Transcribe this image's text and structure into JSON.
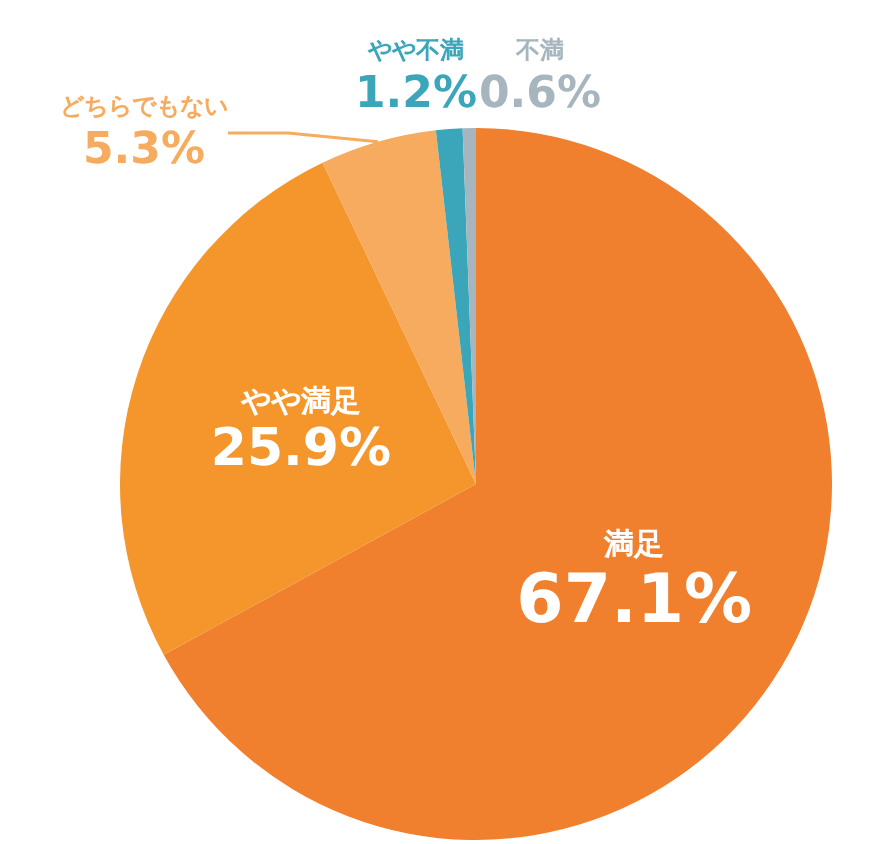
{
  "chart_data": {
    "type": "pie",
    "categories": [
      "満足",
      "やや満足",
      "どちらでもない",
      "やや不満",
      "不満"
    ],
    "values": [
      67.1,
      25.9,
      5.3,
      1.2,
      0.6
    ],
    "value_labels": [
      "67.1%",
      "25.9%",
      "5.3%",
      "1.2%",
      "0.6%"
    ],
    "colors": [
      "#f07f2e",
      "#f5962c",
      "#f6ab5e",
      "#3ba5ba",
      "#a7b5bf"
    ],
    "legend": false
  }
}
